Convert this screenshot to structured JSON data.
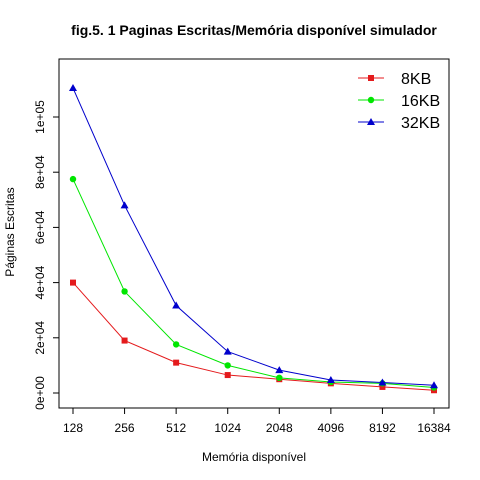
{
  "chart_data": {
    "type": "line",
    "title": "fig.5. 1 Paginas Escritas/Memória disponível  simulador",
    "xlabel": "Memória disponível",
    "ylabel": "Páginas Escritas",
    "categories": [
      "128",
      "256",
      "512",
      "1024",
      "2048",
      "4096",
      "8192",
      "16384"
    ],
    "y_ticks": [
      0,
      20000,
      40000,
      60000,
      80000,
      100000
    ],
    "y_tick_labels": [
      "0e+00",
      "2e+04",
      "4e+04",
      "6e+04",
      "8e+04",
      "1e+05"
    ],
    "ylim": [
      0,
      110000
    ],
    "grid": false,
    "legend_position": "top-right",
    "series": [
      {
        "name": "8KB",
        "color": "#e41a1c",
        "marker": "square",
        "values": [
          40000,
          19000,
          11000,
          6500,
          5000,
          3500,
          2200,
          1000
        ]
      },
      {
        "name": "16KB",
        "color": "#00e600",
        "marker": "circle",
        "values": [
          77500,
          36800,
          17600,
          10000,
          5500,
          4000,
          3500,
          2000
        ]
      },
      {
        "name": "32KB",
        "color": "#0000cc",
        "marker": "triangle",
        "values": [
          110500,
          68000,
          31700,
          15000,
          8300,
          4700,
          3800,
          2800
        ]
      }
    ]
  }
}
